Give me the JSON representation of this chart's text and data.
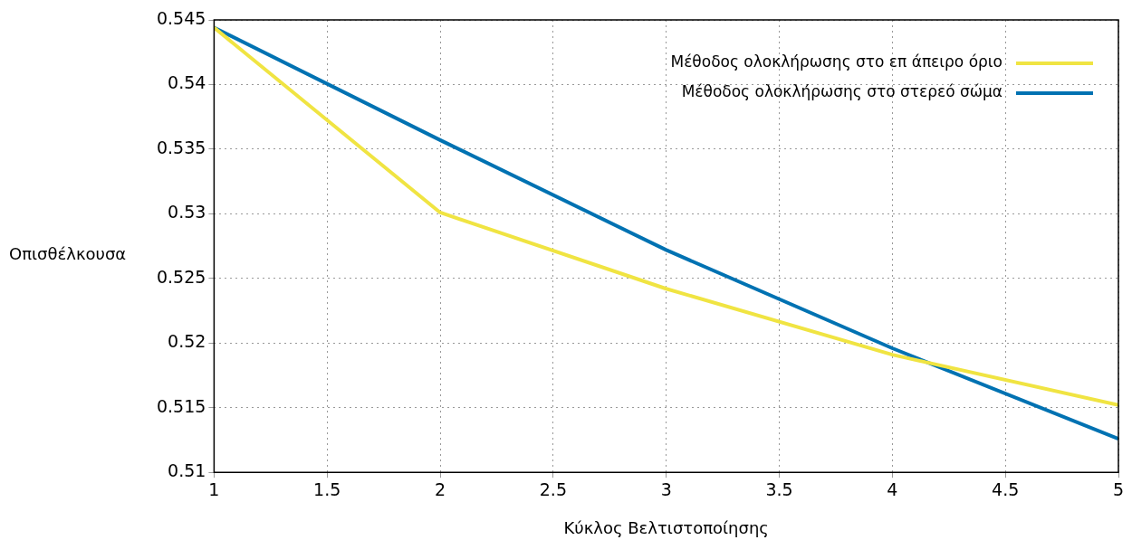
{
  "chart_data": {
    "type": "line",
    "xlabel": "Κύκλος Βελτιστοποίησης",
    "ylabel": "Οπισθέλκουσα",
    "x": [
      1,
      2,
      3,
      4,
      5
    ],
    "series": [
      {
        "name": "Μέθοδος ολοκλήρωσης στο επ άπειρο όριο",
        "color": "#f0e442",
        "values": [
          0.5444,
          0.5301,
          0.5242,
          0.5191,
          0.5152
        ]
      },
      {
        "name": "Μέθοδος ολοκλήρωσης στο στερεό σώμα",
        "color": "#0072b2",
        "values": [
          0.5444,
          0.5357,
          0.5272,
          0.5196,
          0.5126
        ]
      }
    ],
    "xlim": [
      1,
      5
    ],
    "xticks": [
      1,
      1.5,
      2,
      2.5,
      3,
      3.5,
      4,
      4.5,
      5
    ],
    "ylim": [
      0.51,
      0.545
    ],
    "yticks": [
      0.51,
      0.515,
      0.52,
      0.525,
      0.53,
      0.535,
      0.54,
      0.545
    ],
    "grid": true,
    "legend": "top right",
    "marker": "none",
    "line_style": "solid"
  }
}
